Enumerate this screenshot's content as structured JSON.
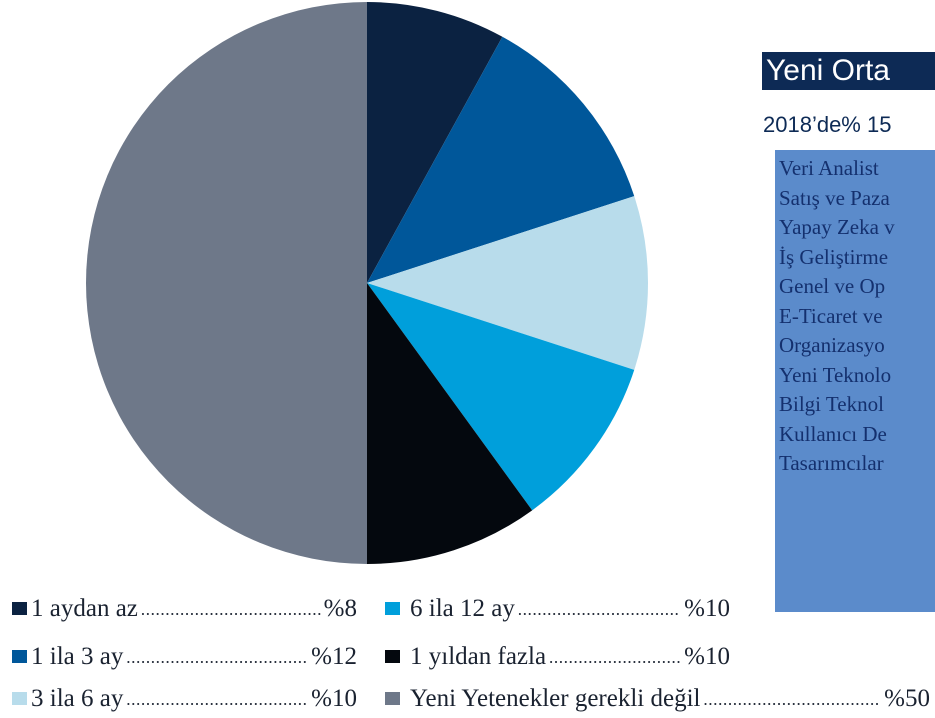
{
  "chart_data": {
    "type": "pie",
    "categories": [
      "1 aydan az",
      "1 ila 3 ay",
      "3 ila 6 ay",
      "6 ila 12 ay",
      "1 yıldan fazla",
      "Yeni Yetenekler gerekli değil"
    ],
    "values": [
      8,
      12,
      10,
      10,
      10,
      50
    ],
    "value_labels": [
      "%8",
      "%12",
      "%10",
      "%10",
      "%10",
      "%50"
    ],
    "colors": [
      "#0b2241",
      "#00579a",
      "#b8dceb",
      "#009fdb",
      "#04080e",
      "#6e7889"
    ]
  },
  "panel": {
    "title": "Yeni Orta",
    "subtitle": "2018’de% 15",
    "items": [
      "Veri Analist",
      "Satış ve Paza",
      "Yapay Zeka v",
      "İş Geliştirme",
      "Genel ve Op",
      "E-Ticaret ve",
      "Organizasyo",
      "Yeni Teknolo",
      "Bilgi Teknol",
      "Kullanıcı De",
      "Tasarımcılar"
    ]
  }
}
